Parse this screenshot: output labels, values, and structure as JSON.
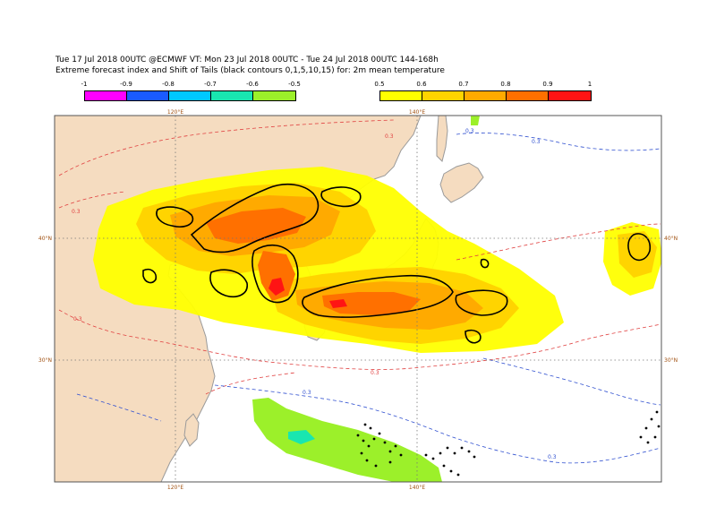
{
  "title": {
    "line1": "Tue 17 Jul 2018 00UTC @ECMWF VT: Mon 23 Jul 2018 00UTC - Tue 24 Jul 2018 00UTC  144-168h",
    "line2": "Extreme forecast index and Shift of Tails (black contours 0,1,5,10,15) for: 2m mean temperature"
  },
  "colorbar_negative": {
    "ticks": [
      "-1",
      "-0.9",
      "-0.8",
      "-0.7",
      "-0.6",
      "-0.5"
    ],
    "colors": [
      "#ff00ff",
      "#1a5bff",
      "#00c8ff",
      "#19e6b0",
      "#9cf02a"
    ]
  },
  "colorbar_positive": {
    "ticks": [
      "0.5",
      "0.6",
      "0.7",
      "0.8",
      "0.9",
      "1"
    ],
    "colors": [
      "#ffff00",
      "#ffd400",
      "#ffaa00",
      "#ff7000",
      "#ff1414"
    ]
  },
  "map": {
    "lon_labels_top": [
      "120°E",
      "140°E"
    ],
    "lon_labels_bottom": [
      "120°E",
      "140°E"
    ],
    "lat_labels_left": [
      "40°N",
      "30°N"
    ],
    "lat_labels_right": [
      "40°N",
      "30°N"
    ],
    "contour_labels_red": [
      "0.3",
      "0.3",
      "0.3",
      "0.3"
    ],
    "contour_labels_blue": [
      "0.3",
      "0.3",
      "0.3",
      "0.3"
    ],
    "colors": {
      "land": "#f5dcc0",
      "sea": "#ffffff",
      "coast": "#9a9a9a",
      "grid": "#777777",
      "red_contour": "#e04040",
      "blue_contour": "#3050d0",
      "sot_contour": "#000000"
    }
  }
}
